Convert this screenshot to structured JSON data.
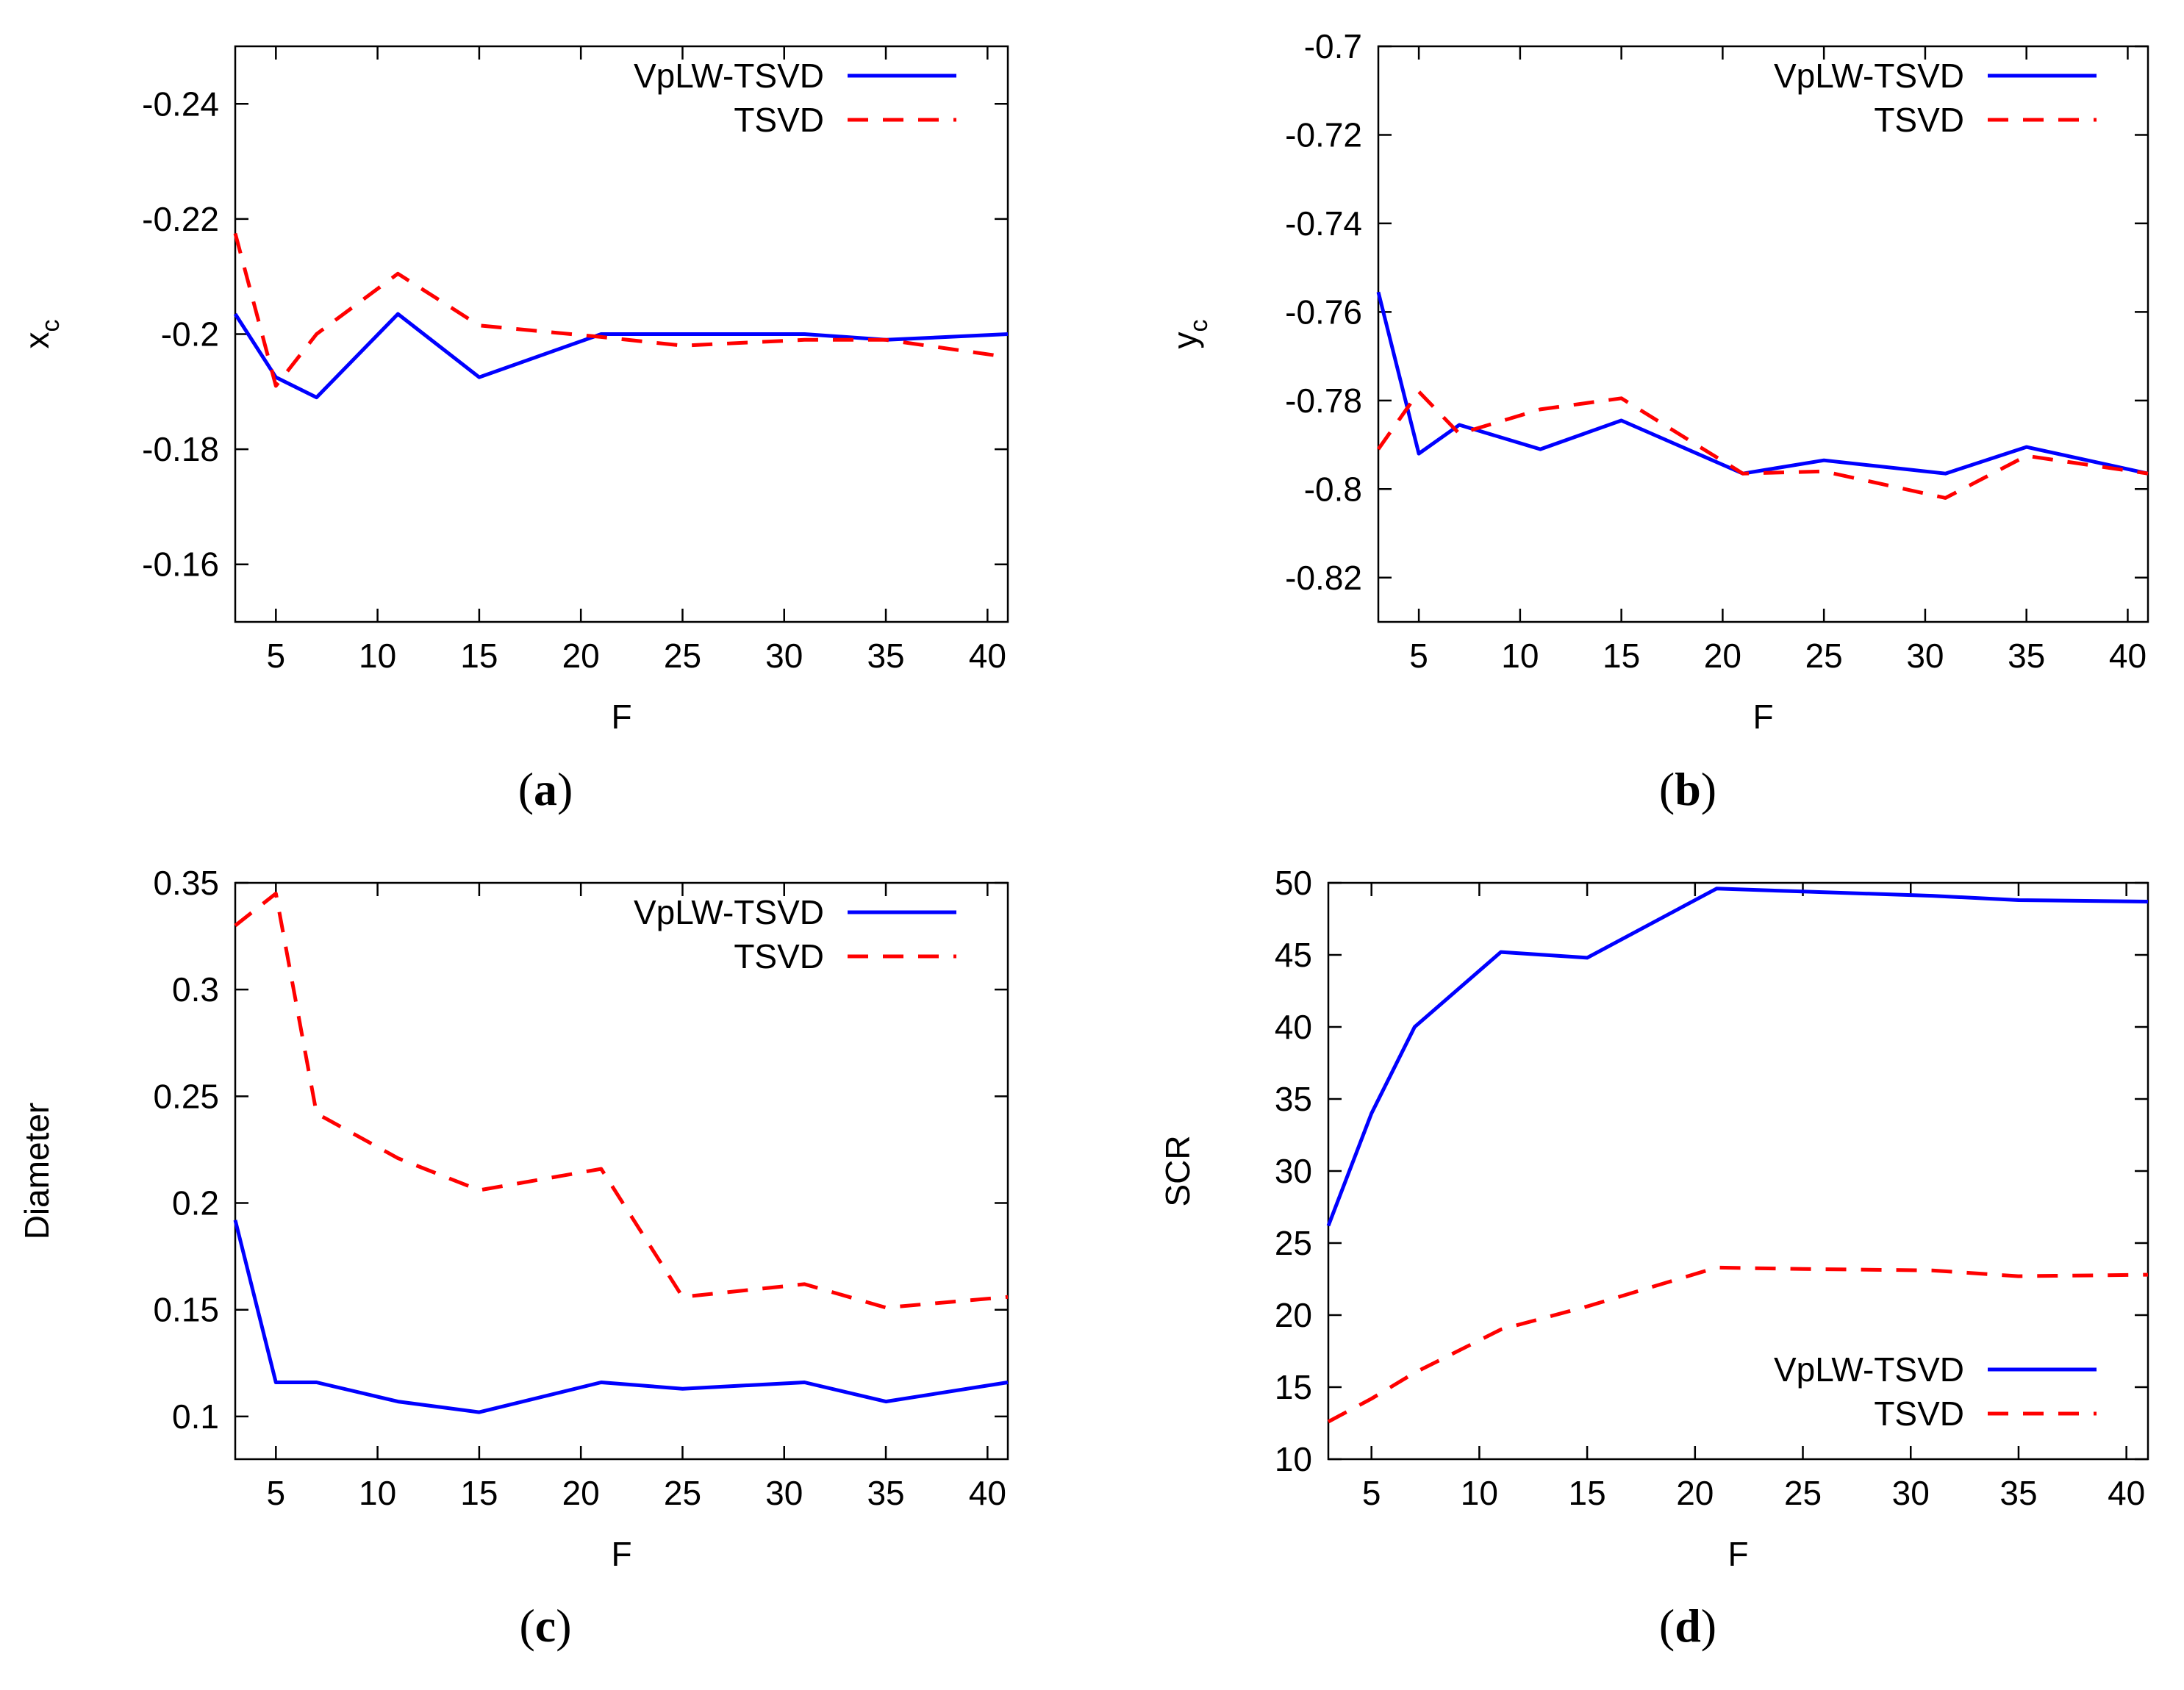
{
  "chart_data": [
    {
      "type": "line",
      "caption_letter": "a",
      "xlabel": "F",
      "ylabel": "x",
      "ylabel_sub": "c",
      "xlim": [
        3,
        41
      ],
      "ylim": [
        -0.15,
        -0.25
      ],
      "x_ticks": [
        5,
        10,
        15,
        20,
        25,
        30,
        35,
        40
      ],
      "x_tick_labels": [
        "5",
        "10",
        "15",
        "20",
        "25",
        "30",
        "35",
        "40"
      ],
      "y_ticks": [
        -0.24,
        -0.22,
        -0.2,
        -0.18,
        -0.16
      ],
      "y_tick_labels": [
        "-0.24",
        "-0.22",
        "-0.2",
        "-0.18",
        "-0.16"
      ],
      "legend_position": "top-right",
      "series": [
        {
          "name": "VpLW-TSVD",
          "color": "#0000ff",
          "dash": "solid",
          "x": [
            3,
            5,
            7,
            11,
            15,
            21,
            25,
            31,
            35,
            41
          ],
          "y": [
            -0.2035,
            -0.1925,
            -0.189,
            -0.2035,
            -0.1925,
            -0.2,
            -0.2,
            -0.2,
            -0.199,
            -0.2
          ]
        },
        {
          "name": "TSVD",
          "color": "#ff0000",
          "dash": "dashed",
          "x": [
            3,
            5,
            7,
            11,
            15,
            21,
            25,
            31,
            35,
            41
          ],
          "y": [
            -0.2175,
            -0.191,
            -0.2,
            -0.2105,
            -0.2015,
            -0.1995,
            -0.198,
            -0.199,
            -0.199,
            -0.196
          ]
        }
      ]
    },
    {
      "type": "line",
      "caption_letter": "b",
      "xlabel": "F",
      "ylabel": "y",
      "ylabel_sub": "c",
      "xlim": [
        3,
        41
      ],
      "ylim": [
        -0.83,
        -0.7
      ],
      "x_ticks": [
        5,
        10,
        15,
        20,
        25,
        30,
        35,
        40
      ],
      "x_tick_labels": [
        "5",
        "10",
        "15",
        "20",
        "25",
        "30",
        "35",
        "40"
      ],
      "y_ticks": [
        -0.7,
        -0.72,
        -0.74,
        -0.76,
        -0.78,
        -0.8,
        -0.82
      ],
      "y_tick_labels": [
        "-0.7",
        "-0.72",
        "-0.74",
        "-0.76",
        "-0.78",
        "-0.8",
        "-0.82"
      ],
      "legend_position": "top-right",
      "series": [
        {
          "name": "VpLW-TSVD",
          "color": "#0000ff",
          "dash": "solid",
          "x": [
            3,
            5,
            7,
            11,
            15,
            21,
            25,
            31,
            35,
            41
          ],
          "y": [
            -0.7555,
            -0.792,
            -0.7855,
            -0.791,
            -0.7845,
            -0.7965,
            -0.7935,
            -0.7965,
            -0.7905,
            -0.7965
          ]
        },
        {
          "name": "TSVD",
          "color": "#ff0000",
          "dash": "dashed",
          "x": [
            3,
            5,
            7,
            11,
            15,
            21,
            25,
            31,
            35,
            41
          ],
          "y": [
            -0.791,
            -0.778,
            -0.7875,
            -0.782,
            -0.7795,
            -0.7965,
            -0.796,
            -0.802,
            -0.7925,
            -0.7965
          ]
        }
      ]
    },
    {
      "type": "line",
      "caption_letter": "c",
      "xlabel": "F",
      "ylabel": "Diameter",
      "xlim": [
        3,
        41
      ],
      "ylim": [
        0.08,
        0.35
      ],
      "x_ticks": [
        5,
        10,
        15,
        20,
        25,
        30,
        35,
        40
      ],
      "x_tick_labels": [
        "5",
        "10",
        "15",
        "20",
        "25",
        "30",
        "35",
        "40"
      ],
      "y_ticks": [
        0.1,
        0.15,
        0.2,
        0.25,
        0.3,
        0.35
      ],
      "y_tick_labels": [
        "0.1",
        "0.15",
        "0.2",
        "0.25",
        "0.3",
        "0.35"
      ],
      "legend_position": "top-right",
      "series": [
        {
          "name": "VpLW-TSVD",
          "color": "#0000ff",
          "dash": "solid",
          "x": [
            3,
            5,
            7,
            11,
            15,
            21,
            25,
            31,
            35,
            41
          ],
          "y": [
            0.192,
            0.116,
            0.116,
            0.107,
            0.102,
            0.116,
            0.113,
            0.116,
            0.107,
            0.116
          ]
        },
        {
          "name": "TSVD",
          "color": "#ff0000",
          "dash": "dashed",
          "x": [
            3,
            5,
            7,
            11,
            15,
            21,
            25,
            31,
            35,
            41
          ],
          "y": [
            0.33,
            0.345,
            0.242,
            0.221,
            0.206,
            0.216,
            0.156,
            0.162,
            0.151,
            0.156
          ]
        }
      ]
    },
    {
      "type": "line",
      "caption_letter": "d",
      "xlabel": "F",
      "ylabel": "SCR",
      "xlim": [
        3,
        41
      ],
      "ylim": [
        10,
        50
      ],
      "x_ticks": [
        5,
        10,
        15,
        20,
        25,
        30,
        35,
        40
      ],
      "x_tick_labels": [
        "5",
        "10",
        "15",
        "20",
        "25",
        "30",
        "35",
        "40"
      ],
      "y_ticks": [
        10,
        15,
        20,
        25,
        30,
        35,
        40,
        45,
        50
      ],
      "y_tick_labels": [
        "10",
        "15",
        "20",
        "25",
        "30",
        "35",
        "40",
        "45",
        "50"
      ],
      "legend_position": "bottom-right",
      "series": [
        {
          "name": "VpLW-TSVD",
          "color": "#0000ff",
          "dash": "solid",
          "x": [
            3,
            5,
            7,
            11,
            15,
            21,
            25,
            31,
            35,
            41
          ],
          "y": [
            26.2,
            34,
            40,
            45.2,
            44.8,
            49.6,
            49.4,
            49.1,
            48.8,
            48.7
          ]
        },
        {
          "name": "TSVD",
          "color": "#ff0000",
          "dash": "dashed",
          "x": [
            3,
            5,
            7,
            11,
            15,
            21,
            25,
            31,
            35,
            41
          ],
          "y": [
            12.6,
            14.2,
            16,
            19,
            20.6,
            23.3,
            23.2,
            23.1,
            22.7,
            22.8
          ]
        }
      ]
    }
  ]
}
